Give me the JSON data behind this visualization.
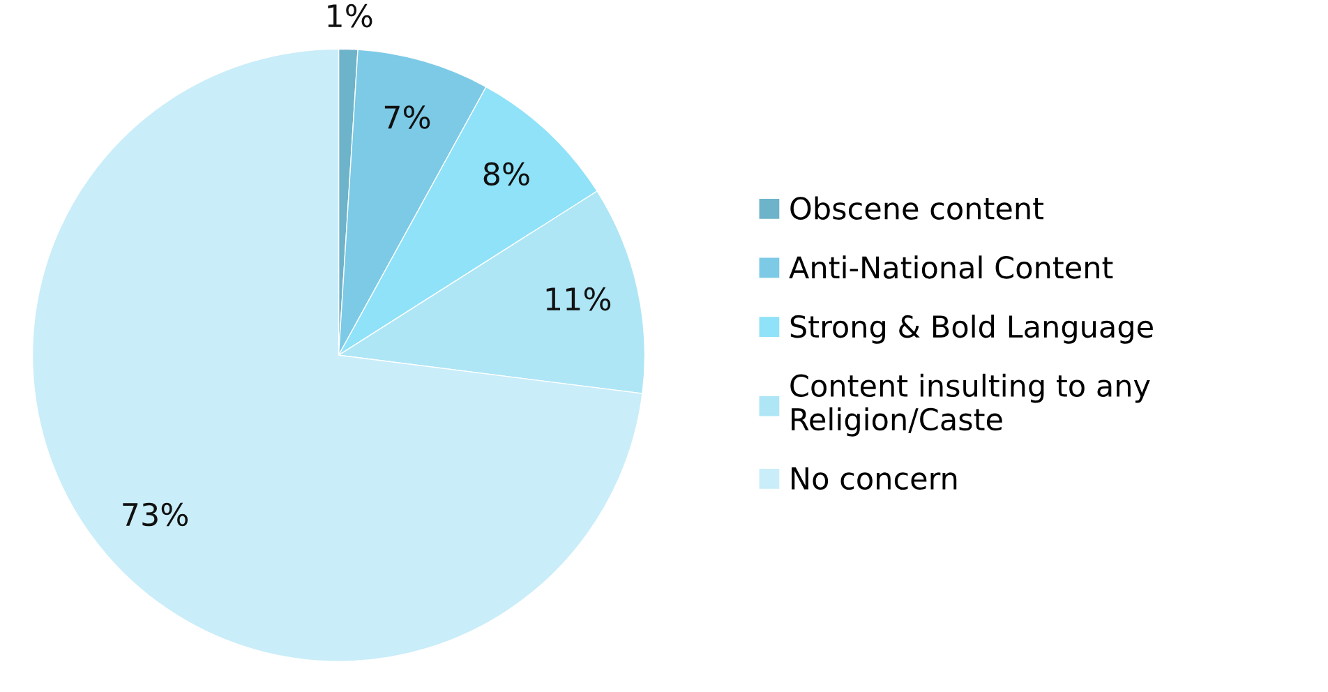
{
  "chart_data": {
    "type": "pie",
    "categories": [
      "Obscene content",
      "Anti-National Content",
      "Strong & Bold Language",
      "Content insulting to any Religion/Caste",
      "No concern"
    ],
    "values": [
      1,
      7,
      8,
      11,
      73
    ],
    "colors": [
      "#6db3c9",
      "#7ccae6",
      "#8fe2f8",
      "#aee6f6",
      "#c9edf9"
    ],
    "value_labels": [
      "1%",
      "7%",
      "8%",
      "11%",
      "73%"
    ],
    "legend": "right"
  }
}
